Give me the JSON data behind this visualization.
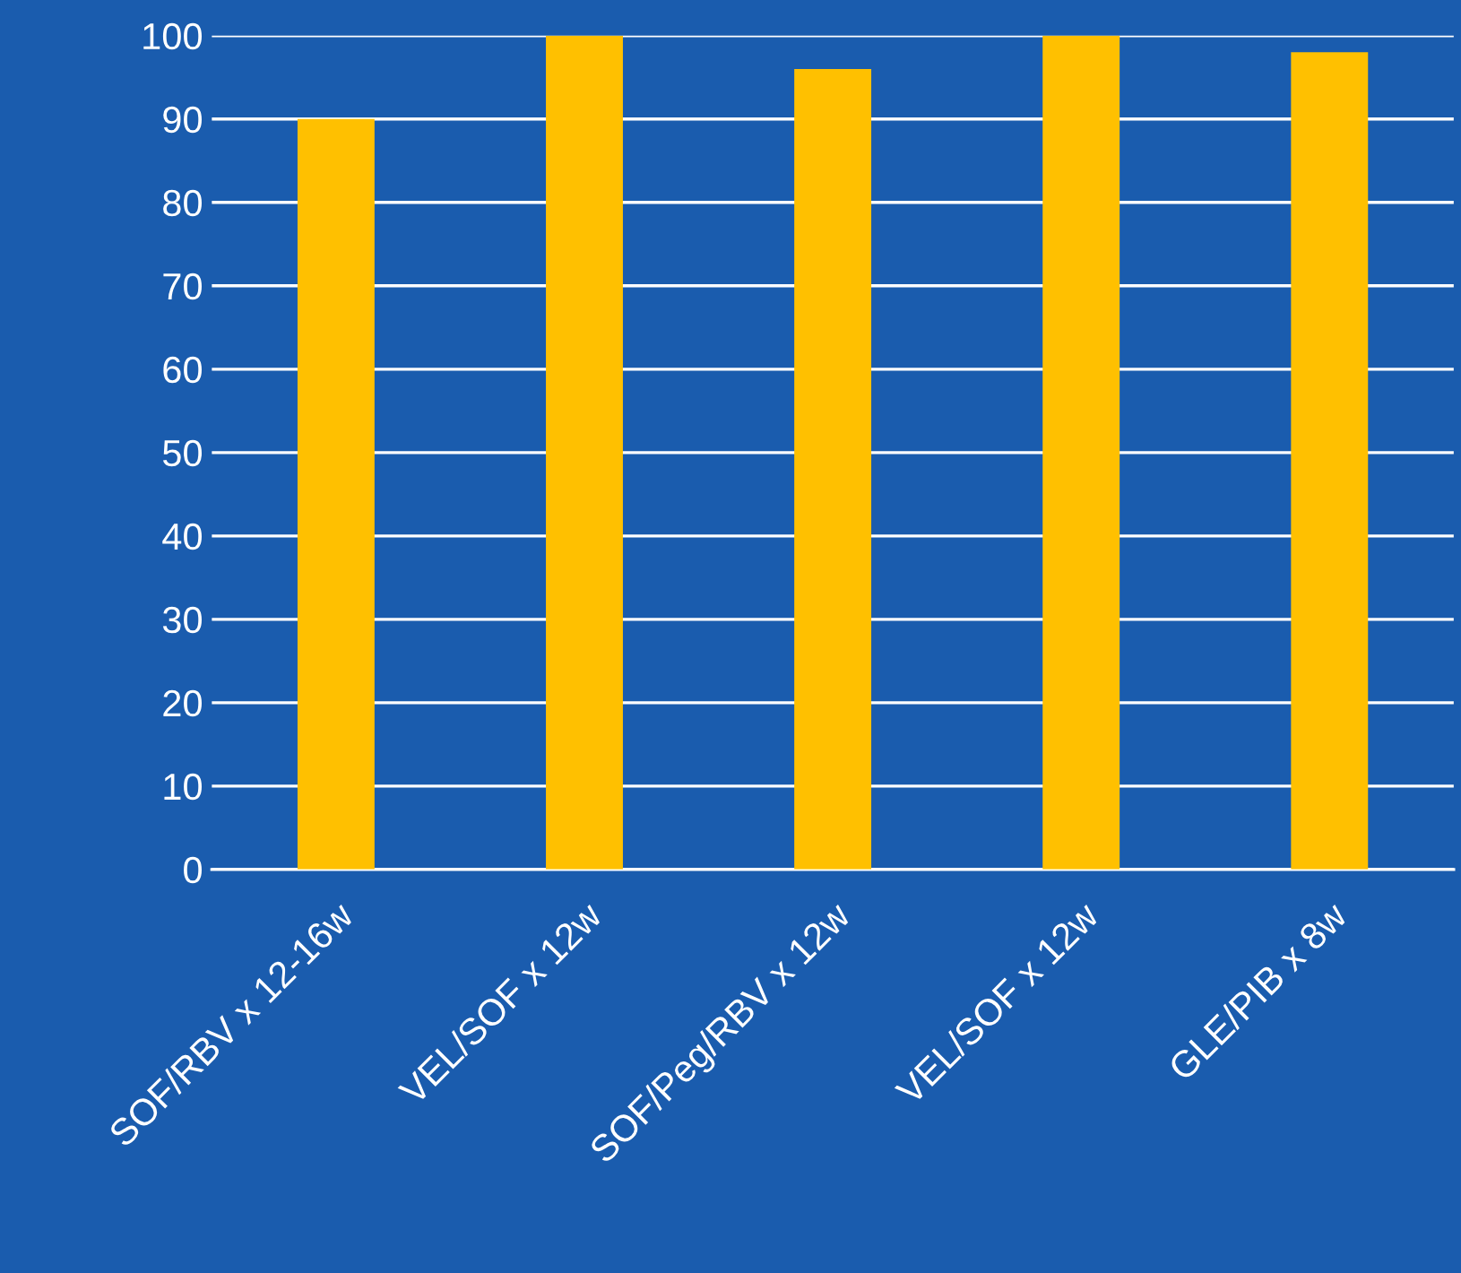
{
  "chart_data": {
    "type": "bar",
    "categories": [
      "SOF/RBV x 12-16w",
      "VEL/SOF x 12w",
      "SOF/Peg/RBV x 12w",
      "VEL/SOF x 12w",
      "GLE/PIB x 8w"
    ],
    "values": [
      90,
      100,
      96,
      100,
      98
    ],
    "color": "#ffc000",
    "ylim": [
      0,
      100
    ],
    "yticks": [
      0,
      10,
      20,
      30,
      40,
      50,
      60,
      70,
      80,
      90,
      100
    ],
    "grid": "y",
    "legend": false
  }
}
